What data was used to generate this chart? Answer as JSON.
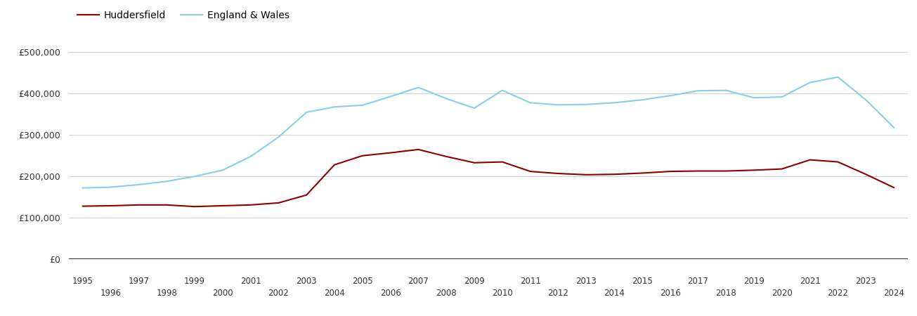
{
  "years": [
    1995,
    1996,
    1997,
    1998,
    1999,
    2000,
    2001,
    2002,
    2003,
    2004,
    2005,
    2006,
    2007,
    2008,
    2009,
    2010,
    2011,
    2012,
    2013,
    2014,
    2015,
    2016,
    2017,
    2018,
    2019,
    2020,
    2021,
    2022,
    2023,
    2024
  ],
  "huddersfield": [
    128000,
    129000,
    131000,
    131000,
    127000,
    129000,
    131000,
    136000,
    155000,
    228000,
    250000,
    257000,
    265000,
    248000,
    233000,
    235000,
    212000,
    207000,
    204000,
    205000,
    208000,
    212000,
    213000,
    213000,
    215000,
    218000,
    240000,
    235000,
    205000,
    173000
  ],
  "england_wales": [
    172000,
    174000,
    180000,
    188000,
    200000,
    215000,
    248000,
    295000,
    355000,
    368000,
    372000,
    393000,
    415000,
    388000,
    365000,
    408000,
    378000,
    373000,
    374000,
    378000,
    385000,
    395000,
    407000,
    408000,
    390000,
    392000,
    427000,
    440000,
    385000,
    318000
  ],
  "huddersfield_color": "#8B0000",
  "england_wales_color": "#87CEEB",
  "background_color": "#ffffff",
  "grid_color": "#d3d3d3",
  "ylim": [
    0,
    550000
  ],
  "yticks": [
    0,
    100000,
    200000,
    300000,
    400000,
    500000
  ],
  "ytick_labels": [
    "£0",
    "£100,000",
    "£200,000",
    "£300,000",
    "£400,000",
    "£500,000"
  ],
  "legend_huddersfield": "Huddersfield",
  "legend_england_wales": "England & Wales",
  "linewidth": 1.5
}
